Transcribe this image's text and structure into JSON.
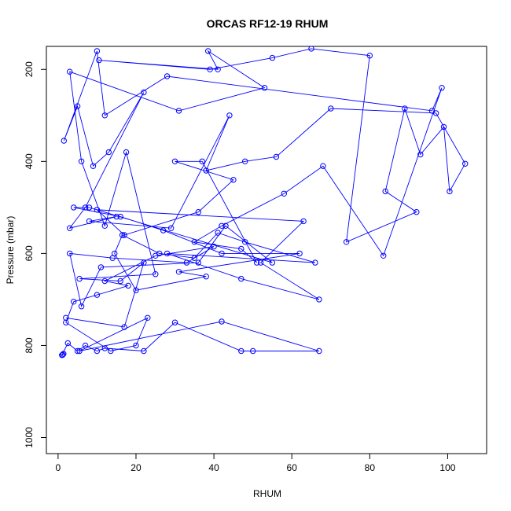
{
  "chart_data": {
    "type": "line",
    "title": "ORCAS RF12-19 RHUM",
    "xlabel": "RHUM",
    "ylabel": "Pressure (mbar)",
    "xlim": [
      -3,
      110
    ],
    "ylim": [
      1035,
      150
    ],
    "y_reversed": true,
    "grid": false,
    "legend": "none",
    "marker": "open-circle",
    "color": "#0000ff",
    "xticks": [
      0,
      20,
      40,
      60,
      80,
      100
    ],
    "yticks": [
      200,
      400,
      600,
      800,
      1000
    ],
    "series": [
      {
        "x": [
          1.2,
          1.4,
          1.0,
          2.5,
          5,
          7,
          10,
          12,
          22,
          30,
          47,
          50,
          67,
          42,
          5.5,
          23,
          20,
          13.5,
          2,
          4,
          10,
          18,
          12,
          25,
          40,
          33,
          14,
          3,
          6,
          11,
          36,
          43,
          55,
          8,
          4,
          16,
          27,
          42,
          62,
          31,
          38,
          20,
          14.5,
          16.5,
          26,
          35,
          41,
          48,
          66,
          28,
          47,
          67,
          52,
          63,
          10,
          17,
          36,
          45,
          30,
          37,
          51,
          47,
          35,
          42,
          58,
          68,
          83.5,
          98.5,
          96,
          28,
          12,
          10,
          1.5,
          5,
          9,
          13,
          22,
          7,
          3,
          15,
          8,
          29,
          44,
          38,
          48,
          56,
          70,
          97,
          104.5,
          100.5,
          99,
          93,
          89,
          84,
          92,
          74,
          80,
          65,
          55,
          39,
          10.5,
          41,
          38.5,
          53,
          31,
          3,
          6,
          12,
          17.5,
          25,
          5.5,
          16,
          22,
          17,
          2
        ],
        "y": [
          820,
          818,
          821,
          795,
          812,
          800,
          812,
          806,
          812,
          750,
          812,
          812,
          812,
          748,
          812,
          740,
          800,
          812,
          750,
          705,
          690,
          670,
          660,
          605,
          585,
          620,
          610,
          600,
          715,
          630,
          620,
          540,
          620,
          500,
          500,
          520,
          550,
          600,
          600,
          640,
          650,
          680,
          600,
          560,
          600,
          610,
          555,
          575,
          620,
          600,
          655,
          700,
          620,
          530,
          505,
          560,
          510,
          440,
          400,
          400,
          620,
          590,
          575,
          540,
          470,
          410,
          605,
          240,
          290,
          215,
          300,
          160,
          355,
          280,
          410,
          380,
          250,
          500,
          545,
          520,
          530,
          545,
          300,
          420,
          400,
          390,
          285,
          295,
          405,
          465,
          325,
          385,
          285,
          465,
          510,
          575,
          170,
          155,
          175,
          200,
          180,
          200,
          160,
          240,
          290,
          205,
          400,
          540,
          380,
          645,
          655,
          660,
          620,
          760,
          740
        ]
      }
    ]
  }
}
